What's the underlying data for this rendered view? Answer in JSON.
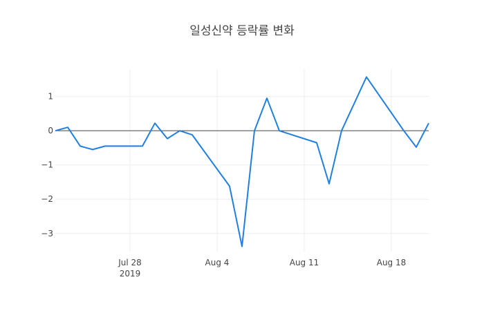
{
  "chart_data": {
    "type": "line",
    "title": "일성신약 등락률 변화",
    "xlabel": "",
    "ylabel": "",
    "x": [
      "2019-07-22",
      "2019-07-23",
      "2019-07-24",
      "2019-07-25",
      "2019-07-26",
      "2019-07-29",
      "2019-07-30",
      "2019-07-31",
      "2019-08-01",
      "2019-08-02",
      "2019-08-05",
      "2019-08-06",
      "2019-08-07",
      "2019-08-08",
      "2019-08-09",
      "2019-08-12",
      "2019-08-13",
      "2019-08-14",
      "2019-08-16",
      "2019-08-19",
      "2019-08-20",
      "2019-08-21"
    ],
    "series": [
      {
        "values": [
          0.0,
          0.1,
          -0.45,
          -0.55,
          -0.45,
          -0.45,
          0.22,
          -0.23,
          0.0,
          -0.12,
          -1.62,
          -3.38,
          0.0,
          0.95,
          0.0,
          -0.35,
          -1.55,
          0.0,
          1.57,
          0.0,
          -0.48,
          0.22
        ],
        "color": "#1f7fe0"
      }
    ],
    "x_range": [
      "2019-07-22",
      "2019-08-21"
    ],
    "ylim": [
      -3.55,
      1.8
    ],
    "x_ticks": [
      {
        "date": "2019-07-28",
        "label": "Jul 28",
        "sublabel": "2019"
      },
      {
        "date": "2019-08-04",
        "label": "Aug 4",
        "sublabel": ""
      },
      {
        "date": "2019-08-11",
        "label": "Aug 11",
        "sublabel": ""
      },
      {
        "date": "2019-08-18",
        "label": "Aug 18",
        "sublabel": ""
      }
    ],
    "y_ticks": [
      1,
      0,
      -1,
      -2,
      -3
    ],
    "y_tick_labels": [
      "1",
      "0",
      "−1",
      "−2",
      "−3"
    ],
    "grid": true,
    "zero_line": true,
    "colors": {
      "line": "#1f7fe0",
      "grid": "#eeeeee",
      "zero_line": "#444444",
      "text": "#444444"
    }
  }
}
